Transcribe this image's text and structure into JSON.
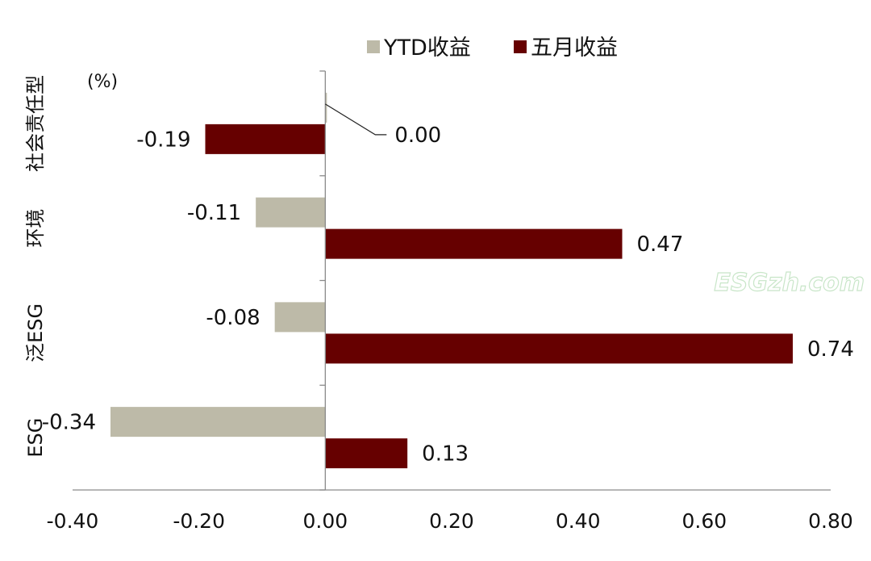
{
  "chart_data": {
    "type": "bar",
    "orientation": "horizontal",
    "unit_label": "(%)",
    "categories": [
      "社会责任型",
      "环境",
      "泛ESG",
      "ESG"
    ],
    "series": [
      {
        "name": "YTD收益",
        "color": "#bdbaa8",
        "values": [
          0.0,
          -0.11,
          -0.08,
          -0.34
        ]
      },
      {
        "name": "五月收益",
        "color": "#660000",
        "values": [
          -0.19,
          0.47,
          0.74,
          0.13
        ]
      }
    ],
    "x_ticks": [
      "-0.40",
      "-0.20",
      "0.00",
      "0.20",
      "0.40",
      "0.60",
      "0.80"
    ],
    "xlim": [
      -0.4,
      0.8
    ],
    "legend_position": "top",
    "grid": false
  },
  "watermark": "ESGzh.com"
}
